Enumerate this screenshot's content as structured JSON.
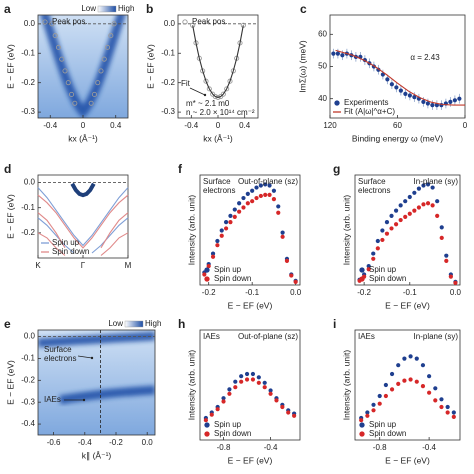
{
  "chart_data": [
    {
      "type": "heatmap",
      "label": "a",
      "xlabel": "kx (Å⁻¹)",
      "ylabel": "E − EF (eV)",
      "xlim": [
        -0.55,
        0.55
      ],
      "xticks": [
        -0.4,
        0,
        0.4
      ],
      "ylim": [
        -0.32,
        0.03
      ],
      "yticks": [
        -0.3,
        -0.2,
        -0.1,
        {
          "value": 0,
          "label": "0.0"
        }
      ],
      "zero_line": true,
      "colorbar": [
        "Low",
        "High"
      ],
      "legend": "upper left",
      "series": [
        {
          "name": "Peak pos.",
          "color": "#9a9a9a",
          "style": "markers",
          "marker": "open",
          "x": [
            -0.38,
            -0.34,
            -0.3,
            -0.26,
            -0.22,
            -0.18,
            -0.14,
            -0.1,
            0.1,
            0.14,
            0.18,
            0.22,
            0.26,
            0.3,
            0.34,
            0.38
          ],
          "values": [
            0,
            -0.04,
            -0.08,
            -0.12,
            -0.16,
            -0.2,
            -0.24,
            -0.27,
            -0.27,
            -0.24,
            -0.2,
            -0.16,
            -0.12,
            -0.08,
            -0.04,
            0
          ]
        }
      ]
    },
    {
      "type": "scatter",
      "label": "b",
      "xlabel": "kx (Å⁻¹)",
      "ylabel": "E − EF (eV)",
      "xlim": [
        -0.6,
        0.6
      ],
      "xticks": [
        -0.4,
        0,
        0.4
      ],
      "ylim": [
        -0.32,
        0.03
      ],
      "yticks": [
        -0.3,
        -0.2,
        -0.1,
        {
          "value": 0,
          "label": "0.0"
        }
      ],
      "zero_line": true,
      "legend": "upper left",
      "annotations": [
        "Fit",
        "m* ~ 2.1 m0",
        "n ~ 2.0 × 10¹⁴ cm⁻²"
      ],
      "series": [
        {
          "name": "Peak pos.",
          "color": "#9a9a9a",
          "style": "markers",
          "marker": "open",
          "x": [
            -0.38,
            -0.33,
            -0.28,
            -0.23,
            -0.18,
            -0.13,
            -0.08,
            -0.04,
            0,
            0.04,
            0.08,
            0.13,
            0.18,
            0.23,
            0.28,
            0.33,
            0.38
          ],
          "values": [
            -0.005,
            -0.065,
            -0.117,
            -0.16,
            -0.195,
            -0.221,
            -0.239,
            -0.247,
            -0.25,
            -0.247,
            -0.239,
            -0.221,
            -0.195,
            -0.16,
            -0.117,
            -0.065,
            -0.005
          ]
        },
        {
          "color": "#333333",
          "style": "line",
          "x": [
            -0.38,
            -0.33,
            -0.28,
            -0.23,
            -0.18,
            -0.13,
            -0.08,
            -0.04,
            0,
            0.04,
            0.08,
            0.13,
            0.18,
            0.23,
            0.28,
            0.33,
            0.38
          ],
          "values": [
            -0.005,
            -0.065,
            -0.117,
            -0.16,
            -0.195,
            -0.221,
            -0.239,
            -0.247,
            -0.25,
            -0.247,
            -0.239,
            -0.221,
            -0.195,
            -0.16,
            -0.117,
            -0.065,
            -0.005
          ]
        }
      ]
    },
    {
      "type": "scatter",
      "label": "c",
      "xlabel": "Binding energy ω (meV)",
      "ylabel": "ImΣ(ω) (meV)",
      "xlim": [
        120,
        0
      ],
      "xticks": [
        120,
        60,
        0
      ],
      "ylim": [
        34,
        66
      ],
      "yticks": [
        40,
        50,
        60
      ],
      "legend": "lower left",
      "annotations": [
        "α = 2.43"
      ],
      "series": [
        {
          "name": "Experiments",
          "color": "#1f3f8f",
          "style": "markers",
          "x": [
            117,
            113,
            109,
            105,
            101,
            97,
            93,
            89,
            85,
            81,
            77,
            73,
            69,
            65,
            61,
            57,
            53,
            49,
            45,
            41,
            37,
            33,
            29,
            25,
            21,
            17,
            13,
            9,
            5
          ],
          "values": [
            54,
            54,
            53.5,
            54,
            53.5,
            53,
            53,
            52,
            51,
            50,
            49,
            47.5,
            46,
            44.5,
            43.5,
            42.5,
            41.5,
            41,
            40.5,
            40,
            39,
            38.5,
            38,
            38,
            38,
            38.5,
            39,
            39.5,
            40
          ],
          "errors": [
            1.5,
            1.5,
            1.5,
            1.5,
            1.5,
            1.5,
            1.5,
            1.5,
            1.5,
            1.5,
            1.5,
            1.5,
            1.5,
            1.5,
            1.5,
            1.5,
            1.5,
            1.5,
            1.5,
            1.5,
            1.5,
            1.5,
            1.5,
            1.5,
            1.5,
            1.5,
            1.5,
            1.5,
            1.5
          ]
        },
        {
          "name": "Fit (A|ω|^α+C)",
          "color": "#c0392b",
          "style": "line",
          "x": [
            115,
            100,
            90,
            80,
            70,
            60,
            50,
            40,
            30,
            20,
            10,
            0
          ],
          "values": [
            55,
            53.5,
            52,
            50,
            47.5,
            44.8,
            42.3,
            40.3,
            38.9,
            38.2,
            38,
            38
          ]
        }
      ]
    },
    {
      "type": "line",
      "label": "d",
      "ylabel": "E − EF (eV)",
      "xlim": [
        0,
        1
      ],
      "xticks": [
        {
          "value": 0,
          "label": "K"
        },
        {
          "value": 0.5,
          "label": "Γ"
        },
        {
          "value": 1,
          "label": "M"
        }
      ],
      "ylim": [
        -0.3,
        0.03
      ],
      "yticks": [
        -0.2,
        -0.1,
        {
          "value": 0,
          "label": "0.0"
        }
      ],
      "zero_line": true,
      "legend": "lower left",
      "x": [
        0,
        0.1,
        0.2,
        0.3,
        0.4,
        0.5,
        0.6,
        0.7,
        0.8,
        0.9,
        1
      ],
      "series": [
        {
          "name": "Spin up",
          "color": "#7f9fd6",
          "style": "line",
          "values": [
            -0.02,
            -0.06,
            -0.11,
            -0.16,
            -0.21,
            -0.25,
            -0.21,
            -0.16,
            -0.11,
            -0.06,
            -0.02
          ]
        },
        {
          "color": "#7f9fd6",
          "style": "line",
          "values": [
            -0.14,
            -0.17,
            -0.21,
            -0.25,
            -0.28,
            null,
            -0.28,
            -0.25,
            -0.21,
            -0.17,
            -0.14
          ]
        },
        {
          "name": "Spin down",
          "color": "#e08a8a",
          "style": "line",
          "values": [
            -0.05,
            -0.08,
            -0.12,
            -0.17,
            -0.22,
            -0.26,
            -0.22,
            -0.17,
            -0.12,
            -0.08,
            -0.05
          ]
        },
        {
          "color": "#e08a8a",
          "style": "line",
          "values": [
            -0.12,
            -0.15,
            -0.2,
            -0.26,
            null,
            null,
            null,
            -0.26,
            -0.2,
            -0.15,
            -0.12
          ]
        },
        {
          "color": "#e08a8a",
          "style": "line",
          "values": [
            -0.2,
            -0.22,
            -0.26,
            -0.29,
            null,
            null,
            null,
            -0.29,
            -0.26,
            -0.22,
            -0.2
          ]
        },
        {
          "color": "#1e3f7a",
          "style": "line",
          "x": [
            0.38,
            0.42,
            0.46,
            0.5,
            0.54,
            0.58,
            0.62
          ],
          "values": [
            -0.005,
            -0.03,
            -0.045,
            -0.05,
            -0.045,
            -0.03,
            -0.005
          ]
        }
      ]
    },
    {
      "type": "heatmap",
      "label": "e",
      "xlabel": "k∥ (Å⁻¹)",
      "ylabel": "E − EF (eV)",
      "xlim": [
        -0.7,
        0.05
      ],
      "xticks": [
        -0.6,
        -0.4,
        -0.2,
        {
          "value": 0,
          "label": "0.0"
        }
      ],
      "ylim": [
        -0.45,
        0.03
      ],
      "yticks": [
        -0.4,
        -0.3,
        -0.2,
        -0.1,
        {
          "value": 0,
          "label": "0.0"
        }
      ],
      "zero_line": true,
      "vline": -0.3,
      "colorbar": [
        "Low",
        "High"
      ],
      "annotations": [
        [
          "Surface",
          "electrons"
        ],
        "IAEs"
      ],
      "series": []
    },
    {
      "type": "scatter",
      "label": "f",
      "xlabel": "E − EF (eV)",
      "ylabel": "Intensity (arb. unit)",
      "xlim": [
        -0.22,
        0.01
      ],
      "xticks": [
        -0.2,
        -0.1,
        {
          "value": 0,
          "label": "0.0"
        }
      ],
      "ylim": [
        0,
        1.05
      ],
      "legend": "lower left",
      "annotations": [
        [
          "Surface",
          "electrons"
        ],
        "Out-of-plane (sz)"
      ],
      "x": [
        -0.21,
        -0.2,
        -0.19,
        -0.18,
        -0.17,
        -0.16,
        -0.15,
        -0.14,
        -0.13,
        -0.12,
        -0.11,
        -0.1,
        -0.09,
        -0.08,
        -0.07,
        -0.06,
        -0.05,
        -0.04,
        -0.03,
        -0.02,
        -0.01,
        0
      ],
      "series": [
        {
          "name": "Spin up",
          "color": "#1f3f8f",
          "style": "markers",
          "values": [
            0.12,
            0.2,
            0.3,
            0.42,
            0.52,
            0.6,
            0.66,
            0.72,
            0.78,
            0.83,
            0.87,
            0.9,
            0.93,
            0.95,
            0.96,
            0.95,
            0.9,
            0.75,
            0.5,
            0.25,
            0.1,
            0.04
          ]
        },
        {
          "name": "Spin down",
          "color": "#d62728",
          "style": "markers",
          "values": [
            0.1,
            0.18,
            0.27,
            0.38,
            0.47,
            0.54,
            0.6,
            0.65,
            0.7,
            0.74,
            0.78,
            0.8,
            0.83,
            0.85,
            0.86,
            0.86,
            0.82,
            0.69,
            0.46,
            0.23,
            0.09,
            0.03
          ]
        }
      ]
    },
    {
      "type": "scatter",
      "label": "g",
      "xlabel": "E − EF (eV)",
      "ylabel": "Intensity (arb. unit)",
      "xlim": [
        -0.22,
        0.01
      ],
      "xticks": [
        -0.2,
        -0.1,
        {
          "value": 0,
          "label": "0.0"
        }
      ],
      "ylim": [
        0,
        1.05
      ],
      "legend": "lower left",
      "annotations": [
        [
          "Surface",
          "electrons"
        ],
        "In-plane (sy)"
      ],
      "x": [
        -0.21,
        -0.2,
        -0.19,
        -0.18,
        -0.17,
        -0.16,
        -0.15,
        -0.14,
        -0.13,
        -0.12,
        -0.11,
        -0.1,
        -0.09,
        -0.08,
        -0.07,
        -0.06,
        -0.05,
        -0.04,
        -0.03,
        -0.02,
        -0.01,
        0
      ],
      "series": [
        {
          "name": "Spin up",
          "color": "#1f3f8f",
          "style": "markers",
          "values": [
            0.05,
            0.1,
            0.18,
            0.3,
            0.42,
            0.52,
            0.6,
            0.66,
            0.71,
            0.76,
            0.8,
            0.84,
            0.88,
            0.92,
            0.95,
            0.96,
            0.93,
            0.8,
            0.55,
            0.28,
            0.1,
            0.03
          ]
        },
        {
          "name": "Spin down",
          "color": "#d62728",
          "style": "markers",
          "values": [
            0.04,
            0.08,
            0.15,
            0.25,
            0.35,
            0.43,
            0.49,
            0.54,
            0.58,
            0.62,
            0.65,
            0.68,
            0.71,
            0.74,
            0.77,
            0.78,
            0.76,
            0.66,
            0.45,
            0.23,
            0.08,
            0.02
          ]
        }
      ]
    },
    {
      "type": "scatter",
      "label": "h",
      "xlabel": "E − EF (eV)",
      "ylabel": "Intensity (arb. unit)",
      "xlim": [
        -1.0,
        -0.15
      ],
      "xticks": [
        -0.8,
        -0.4
      ],
      "ylim": [
        0,
        1
      ],
      "legend": "lower left",
      "annotations": [
        "IAEs",
        "Out-of-plane (sz)"
      ],
      "x": [
        -0.95,
        -0.9,
        -0.85,
        -0.8,
        -0.75,
        -0.7,
        -0.65,
        -0.6,
        -0.55,
        -0.5,
        -0.45,
        -0.4,
        -0.35,
        -0.3,
        -0.25,
        -0.2
      ],
      "series": [
        {
          "name": "Spin up",
          "color": "#1f3f8f",
          "style": "markers",
          "values": [
            0.2,
            0.25,
            0.3,
            0.38,
            0.46,
            0.53,
            0.58,
            0.6,
            0.6,
            0.57,
            0.52,
            0.45,
            0.38,
            0.32,
            0.27,
            0.24
          ]
        },
        {
          "name": "Spin down",
          "color": "#d62728",
          "style": "markers",
          "values": [
            0.18,
            0.23,
            0.28,
            0.35,
            0.42,
            0.48,
            0.53,
            0.55,
            0.55,
            0.52,
            0.48,
            0.42,
            0.36,
            0.3,
            0.25,
            0.22
          ]
        }
      ]
    },
    {
      "type": "scatter",
      "label": "i",
      "xlabel": "E − EF (eV)",
      "ylabel": "Intensity (arb. unit)",
      "xlim": [
        -1.0,
        -0.15
      ],
      "xticks": [
        -0.8,
        -0.4
      ],
      "ylim": [
        0,
        1
      ],
      "legend": "lower left",
      "annotations": [
        "IAEs",
        "In-plane (sy)"
      ],
      "x": [
        -0.95,
        -0.9,
        -0.85,
        -0.8,
        -0.75,
        -0.7,
        -0.65,
        -0.6,
        -0.55,
        -0.5,
        -0.45,
        -0.4,
        -0.35,
        -0.3,
        -0.25,
        -0.2
      ],
      "series": [
        {
          "name": "Spin up",
          "color": "#1f3f8f",
          "style": "markers",
          "values": [
            0.2,
            0.25,
            0.32,
            0.4,
            0.5,
            0.6,
            0.68,
            0.74,
            0.76,
            0.74,
            0.68,
            0.58,
            0.47,
            0.37,
            0.3,
            0.25
          ]
        },
        {
          "name": "Spin down",
          "color": "#d62728",
          "style": "markers",
          "values": [
            0.18,
            0.22,
            0.27,
            0.33,
            0.4,
            0.46,
            0.51,
            0.54,
            0.55,
            0.53,
            0.49,
            0.43,
            0.36,
            0.3,
            0.25,
            0.21
          ]
        }
      ]
    }
  ]
}
